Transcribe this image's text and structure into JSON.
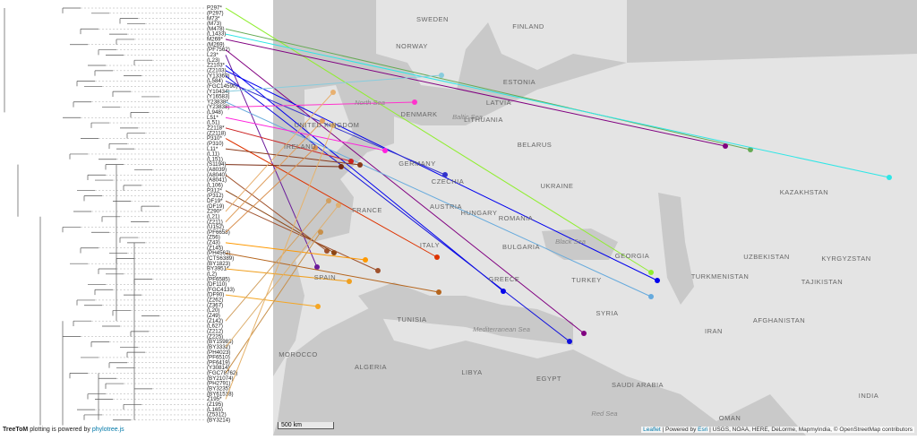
{
  "tree": {
    "leaves": [
      "P297*",
      "(P297)",
      "M73*",
      "(M73)",
      "(M478)",
      "(L1433)",
      "M269*",
      "(M269)",
      "(PF7562)",
      "L23*",
      "(L23)",
      "Z2103*",
      "(Z2103)",
      "(Y13369)",
      "(L584)",
      "(FGC14590)",
      "(Y10434)",
      "(Y16583)",
      "Y23838*",
      "(Y23838)",
      "(L948)",
      "L51*",
      "(L51)",
      "Z2118*",
      "(Z2118)",
      "P310*",
      "(P310)",
      "L11*",
      "(L11)",
      "(L151)",
      "(S1194)",
      "(A8039)",
      "(A8040)",
      "(A8041)",
      "(L106)",
      "P312*",
      "(P312)",
      "DF19*",
      "(DF19)",
      "Z290*",
      "(L21)",
      "(Z211)",
      "(U152)",
      "(PF6658)",
      "(Z56)",
      "(Z43)",
      "(Z145)",
      "(PH4562)",
      "(CTS6389)",
      "(BY1823)",
      "BY3951*",
      "(L2)",
      "(PF6585)",
      "(DF110)",
      "(FGC4133)",
      "(DF90)",
      "(Z262)",
      "(Z367)",
      "(L20)",
      "(Z49)",
      "(Z142)",
      "(L627)",
      "(Z212)",
      "(Z225)",
      "(BY15983)",
      "(BY3332)",
      "(PH4023)",
      "(PF6510)",
      "(PF6419)",
      "(Y30814)",
      "(FGC78762)",
      "(BY21074)",
      "(PH2791)",
      "(BY3235)",
      "(BY61518)",
      "Z195*",
      "(Z195)",
      "(L165)",
      "(Z5312)",
      "(BY3214)"
    ]
  },
  "map": {
    "labels": [
      "SWEDEN",
      "FINLAND",
      "NORWAY",
      "ESTONIA",
      "LATVIA",
      "LITHUANIA",
      "DENMARK",
      "North Sea",
      "Baltic Sea",
      "UNITED KINGDOM",
      "IRELAND",
      "BELARUS",
      "GERMANY",
      "CZECHIA",
      "UKRAINE",
      "KAZAKHSTAN",
      "FRANCE",
      "AUSTRIA",
      "HUNGARY",
      "ROMANIA",
      "Black Sea",
      "BULGARIA",
      "ITALY",
      "GEORGIA",
      "UZBEKISTAN",
      "KYRGYZSTAN",
      "SPAIN",
      "GREECE",
      "TURKEY",
      "TURKMENISTAN",
      "TAJIKISTAN",
      "SYRIA",
      "TUNISIA",
      "Mediterranean Sea",
      "IRAN",
      "AFGHANISTAN",
      "MOROCCO",
      "ALGERIA",
      "LIBYA",
      "EGYPT",
      "SAUDI ARABIA",
      "INDIA",
      "OMAN",
      "Red Sea"
    ],
    "scale": "500 km",
    "attribution": {
      "leaflet": "Leaflet",
      "rest": " | Powered by ",
      "esri": "Esri",
      "sources": " | USGS, NOAA, HERE, DeLorme, MapmyIndia, © OpenStreetMap contributors"
    }
  },
  "footer": {
    "brand": "TreeToM",
    "text": " plotting is powered by ",
    "link": "phylotree.js"
  }
}
